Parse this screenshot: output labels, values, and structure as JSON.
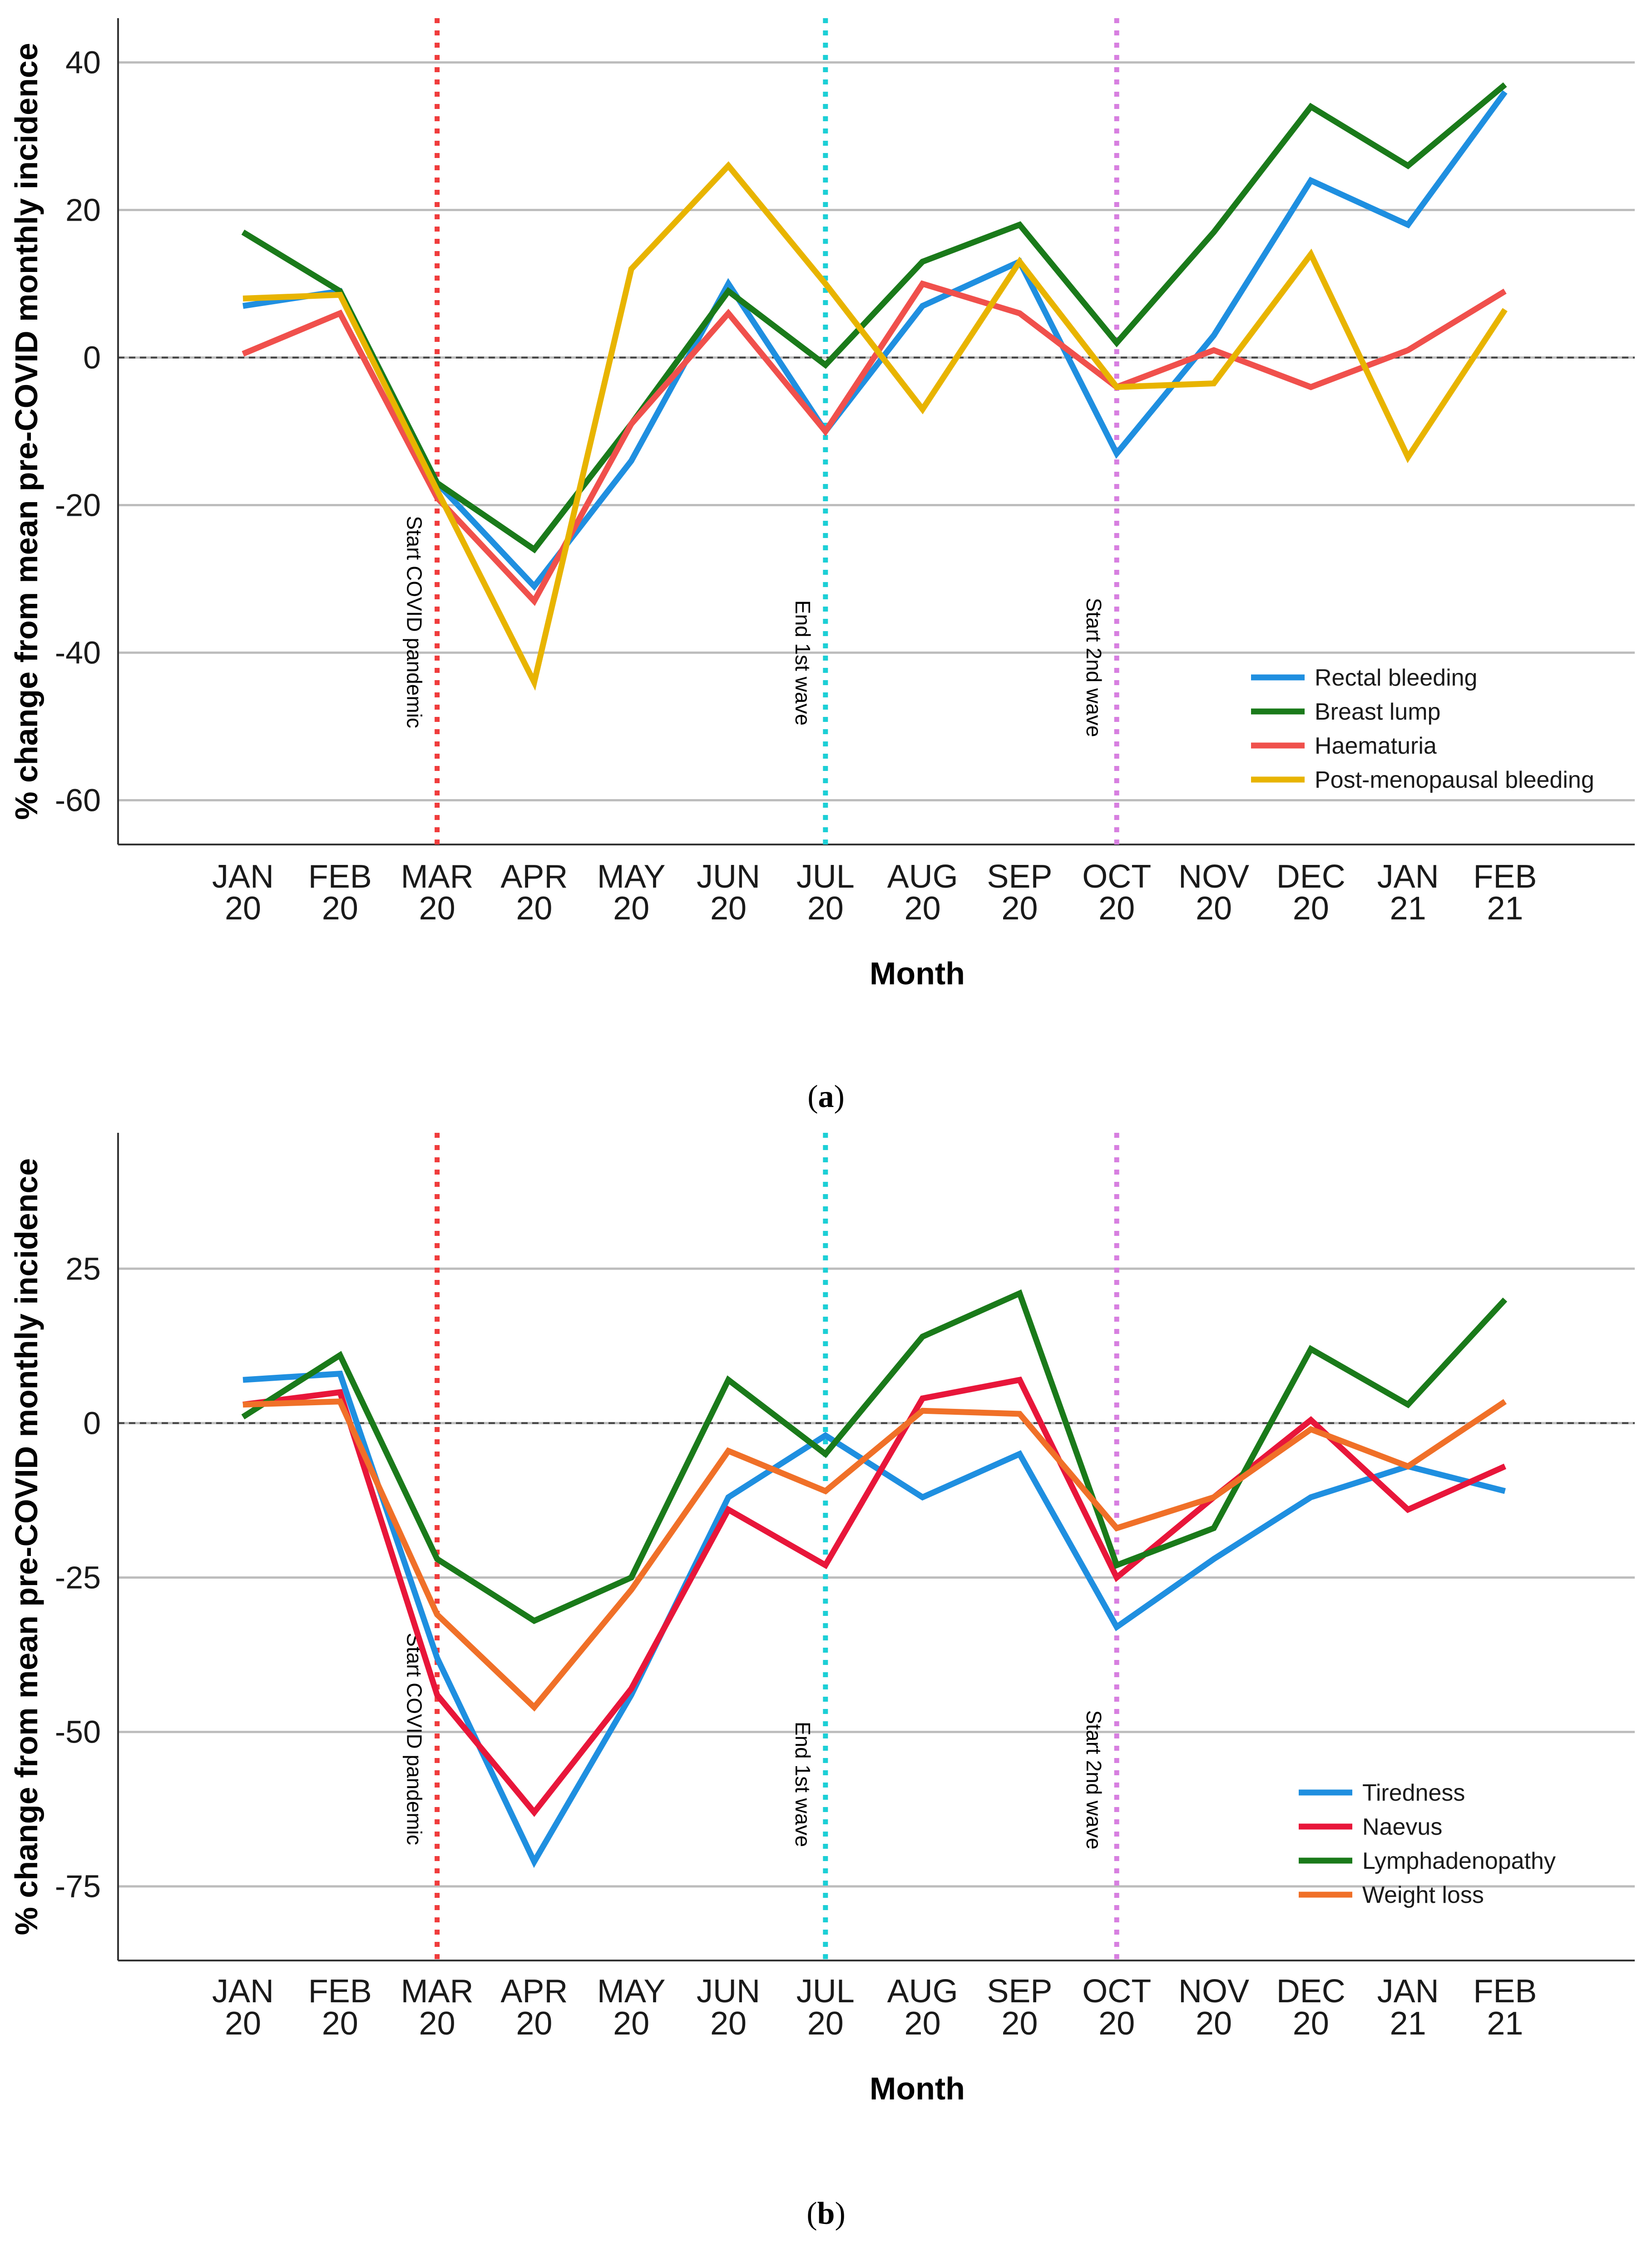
{
  "chart_data": [
    {
      "type": "line",
      "panel_label": "a",
      "caption_prefix": "(",
      "caption_suffix": ")",
      "xlabel": "Month",
      "ylabel": "% change from mean pre-COVID monthly incidence",
      "categories": [
        [
          "JAN",
          "20"
        ],
        [
          "FEB",
          "20"
        ],
        [
          "MAR",
          "20"
        ],
        [
          "APR",
          "20"
        ],
        [
          "MAY",
          "20"
        ],
        [
          "JUN",
          "20"
        ],
        [
          "JUL",
          "20"
        ],
        [
          "AUG",
          "20"
        ],
        [
          "SEP",
          "20"
        ],
        [
          "OCT",
          "20"
        ],
        [
          "NOV",
          "20"
        ],
        [
          "DEC",
          "20"
        ],
        [
          "JAN",
          "21"
        ],
        [
          "FEB",
          "21"
        ]
      ],
      "ylim": [
        -66,
        46
      ],
      "yticks": [
        -60,
        -40,
        -20,
        0,
        20,
        40
      ],
      "ytick_labels": [
        "-60",
        "-40",
        "-20",
        "0",
        "20",
        "40"
      ],
      "grid": true,
      "zero_line": "dashed",
      "legend_position": "bottom-right",
      "vlines": [
        {
          "x_index": 2,
          "label": "Start COVID pandemic",
          "color": "#f03c3c"
        },
        {
          "x_index": 6,
          "label": "End 1st wave",
          "color": "#1ccfd6"
        },
        {
          "x_index": 9,
          "label": "Start 2nd wave",
          "color": "#d77fe0"
        }
      ],
      "series": [
        {
          "name": "Rectal bleeding",
          "color": "#1f8fe0",
          "values": [
            7,
            9,
            -17,
            -31,
            -14,
            10,
            -10,
            7,
            13,
            -13,
            3,
            24,
            18,
            36
          ]
        },
        {
          "name": "Breast lump",
          "color": "#1a7a1a",
          "values": [
            17,
            9,
            -17,
            -26,
            -9,
            9,
            -1,
            13,
            18,
            2,
            17,
            34,
            26,
            37
          ]
        },
        {
          "name": "Haematuria",
          "color": "#f0504c",
          "values": [
            0.5,
            6,
            -19,
            -33,
            -9,
            6,
            -10,
            10,
            6,
            -4,
            1,
            -4,
            1,
            9
          ]
        },
        {
          "name": "Post-menopausal bleeding",
          "color": "#e8b400",
          "values": [
            8,
            8.5,
            -18,
            -44,
            12,
            26,
            10,
            -7,
            13,
            -4,
            -3.5,
            14,
            -13.5,
            6.5
          ]
        }
      ]
    },
    {
      "type": "line",
      "panel_label": "b",
      "caption_prefix": "(",
      "caption_suffix": ")",
      "xlabel": "Month",
      "ylabel": "% change from mean pre-COVID monthly incidence",
      "categories": [
        [
          "JAN",
          "20"
        ],
        [
          "FEB",
          "20"
        ],
        [
          "MAR",
          "20"
        ],
        [
          "APR",
          "20"
        ],
        [
          "MAY",
          "20"
        ],
        [
          "JUN",
          "20"
        ],
        [
          "JUL",
          "20"
        ],
        [
          "AUG",
          "20"
        ],
        [
          "SEP",
          "20"
        ],
        [
          "OCT",
          "20"
        ],
        [
          "NOV",
          "20"
        ],
        [
          "DEC",
          "20"
        ],
        [
          "JAN",
          "21"
        ],
        [
          "FEB",
          "21"
        ]
      ],
      "ylim": [
        -87,
        47
      ],
      "yticks": [
        -75,
        -50,
        -25,
        0,
        25
      ],
      "ytick_labels": [
        "-75",
        "-50",
        "-25",
        "0",
        "25"
      ],
      "grid": true,
      "zero_line": "dashed",
      "legend_position": "bottom-right",
      "vlines": [
        {
          "x_index": 2,
          "label": "Start COVID pandemic",
          "color": "#f03c3c"
        },
        {
          "x_index": 6,
          "label": "End 1st wave",
          "color": "#1ccfd6"
        },
        {
          "x_index": 9,
          "label": "Start 2nd wave",
          "color": "#d77fe0"
        }
      ],
      "series": [
        {
          "name": "Tiredness",
          "color": "#1f8fe0",
          "values": [
            7,
            8,
            -38,
            -71,
            -44,
            -12,
            -2,
            -12,
            -5,
            -33,
            -22,
            -12,
            -7,
            -11
          ]
        },
        {
          "name": "Naevus",
          "color": "#e8163a",
          "values": [
            3,
            5,
            -44,
            -63,
            -43,
            -14,
            -23,
            4,
            7,
            -25,
            -12,
            0.5,
            -14,
            -7
          ]
        },
        {
          "name": "Lymphadenopathy",
          "color": "#1a7a1a",
          "values": [
            1,
            11,
            -22,
            -32,
            -25,
            7,
            -5,
            14,
            21,
            -23,
            -17,
            12,
            3,
            20
          ]
        },
        {
          "name": "Weight loss",
          "color": "#f07028",
          "values": [
            3,
            3.5,
            -31,
            -46,
            -27,
            -4.5,
            -11,
            2,
            1.5,
            -17,
            -12,
            -1,
            -7,
            3.5
          ]
        }
      ]
    }
  ]
}
